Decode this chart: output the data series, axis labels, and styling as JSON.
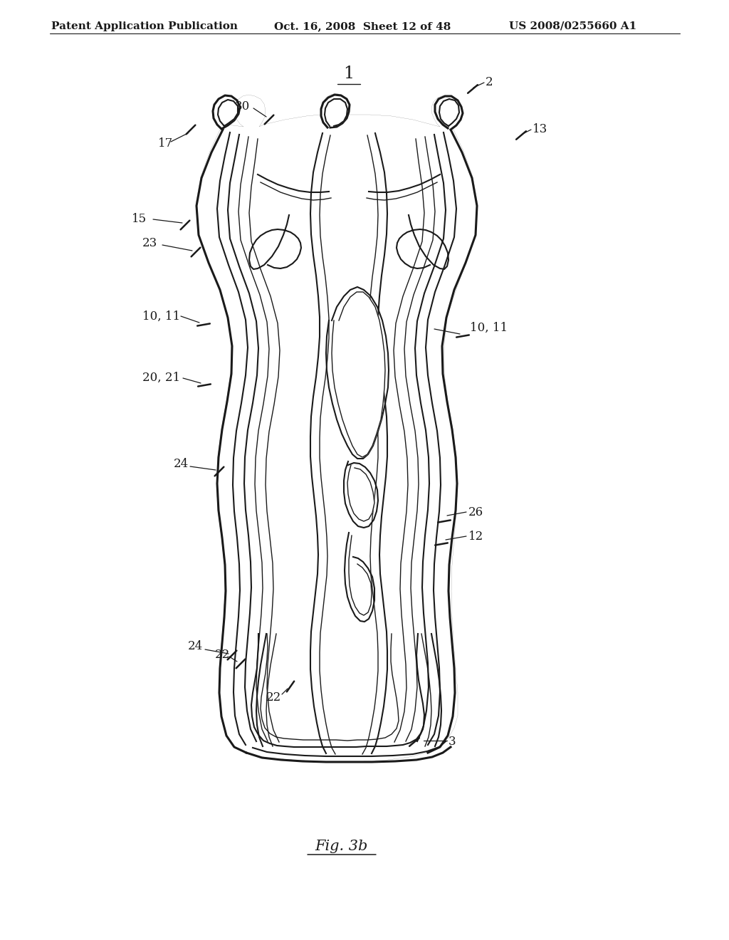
{
  "bg_color": "#ffffff",
  "header_left": "Patent Application Publication",
  "header_mid": "Oct. 16, 2008  Sheet 12 of 48",
  "header_right": "US 2008/0255660 A1",
  "fig_caption": "Fig. 3b",
  "line_color": "#1a1a1a",
  "label_color": "#1a1a1a",
  "font_size_header": 11,
  "font_size_label": 12,
  "font_size_title": 14
}
